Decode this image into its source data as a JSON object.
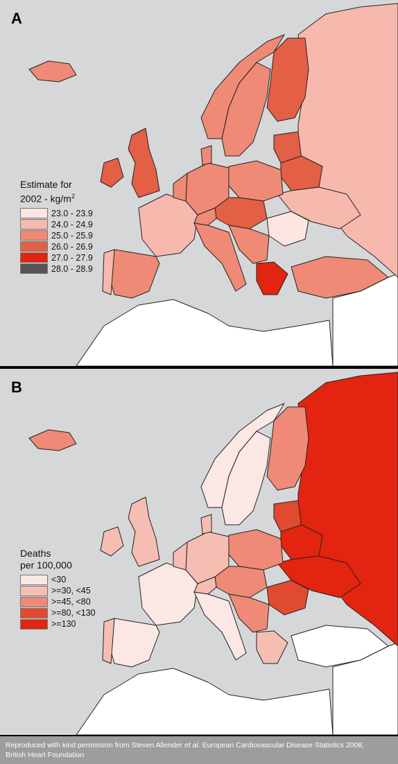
{
  "panels": [
    {
      "letter": "A",
      "legend": {
        "title_line1": "Estimate for",
        "title_line2": "2002 - kg/m",
        "title_sup": "2",
        "items": [
          {
            "label": "23.0 - 23.9",
            "color": "#fde5e1"
          },
          {
            "label": "24.0 - 24.9",
            "color": "#f7b8ad"
          },
          {
            "label": "25.0 - 25.9",
            "color": "#ef8a76"
          },
          {
            "label": "26.0 - 26.9",
            "color": "#e35f45"
          },
          {
            "label": "27.0 - 27.9",
            "color": "#e32410"
          },
          {
            "label": "28.0 - 28.9",
            "color": "#555555"
          }
        ]
      }
    },
    {
      "letter": "B",
      "legend": {
        "title_line1": "Deaths",
        "title_line2": "per 100,000",
        "items": [
          {
            "label": "<30",
            "color": "#fbe7e4"
          },
          {
            "label": ">=30, <45",
            "color": "#f6bdb3"
          },
          {
            "label": ">=45, <80",
            "color": "#ee8a77"
          },
          {
            "label": ">=80, <130",
            "color": "#e04a2f"
          },
          {
            "label": ">=130",
            "color": "#e32410"
          }
        ]
      }
    }
  ],
  "colors": {
    "sea": "#d5d7d9",
    "non_europe": "#ffffff",
    "border": "#222222"
  },
  "credit": {
    "prefix": "Reproduced with kind permission from Steven Allender ",
    "etal": "et al",
    "suffix": ". European Cardiovascular Disease Statistics 2008,",
    "line2": "British Heart Foundation"
  }
}
